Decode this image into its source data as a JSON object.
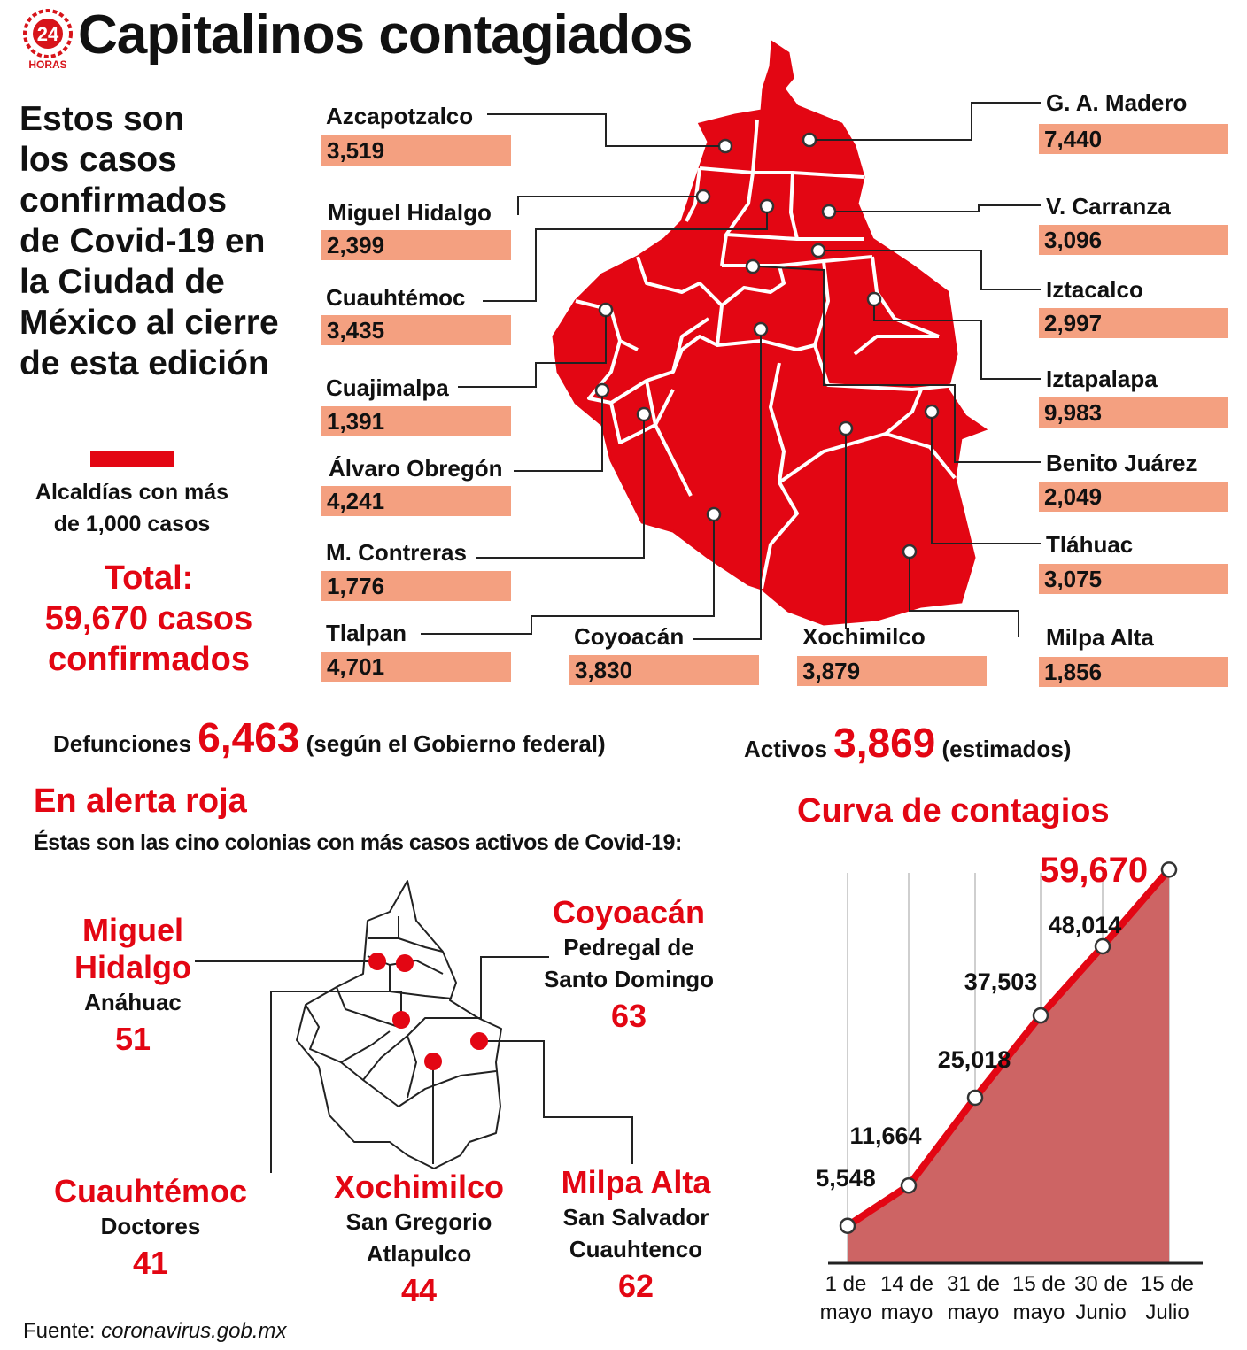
{
  "header": {
    "title": "Capitalinos contagiados",
    "logo_text": "HORAS",
    "logo_number": "24"
  },
  "intro": {
    "lines": [
      "Estos son",
      "los casos",
      "confirmados",
      "de Covid-19 en",
      "la Ciudad de",
      "México al cierre",
      "de esta edición"
    ]
  },
  "legend": {
    "color": "#e30613",
    "label_line1": "Alcaldías con más",
    "label_line2": "de 1,000 casos"
  },
  "total": {
    "line1": "Total:",
    "line2": "59,670 casos",
    "line3": "confirmados"
  },
  "alcaldias": [
    {
      "name": "Azcapotzalco",
      "cases": "3,519"
    },
    {
      "name": "Miguel Hidalgo",
      "cases": "2,399"
    },
    {
      "name": "Cuauhtémoc",
      "cases": "3,435"
    },
    {
      "name": "Cuajimalpa",
      "cases": "1,391"
    },
    {
      "name": "Álvaro Obregón",
      "cases": "4,241"
    },
    {
      "name": "M. Contreras",
      "cases": "1,776"
    },
    {
      "name": "Tlalpan",
      "cases": "4,701"
    },
    {
      "name": "Coyoacán",
      "cases": "3,830"
    },
    {
      "name": "Xochimilco",
      "cases": "3,879"
    },
    {
      "name": "G. A. Madero",
      "cases": "7,440"
    },
    {
      "name": "V. Carranza",
      "cases": "3,096"
    },
    {
      "name": "Iztacalco",
      "cases": "2,997"
    },
    {
      "name": "Iztapalapa",
      "cases": "9,983"
    },
    {
      "name": "Benito Juárez",
      "cases": "2,049"
    },
    {
      "name": "Tláhuac",
      "cases": "3,075"
    },
    {
      "name": "Milpa Alta",
      "cases": "1,856"
    }
  ],
  "stats": {
    "deaths_label": "Defunciones",
    "deaths_value": "6,463",
    "deaths_note": "(según el Gobierno federal)",
    "active_label": "Activos",
    "active_value": "3,869",
    "active_note": "(estimados)"
  },
  "alert": {
    "title": "En alerta roja",
    "subtitle": "Éstas son las cino colonias con más casos activos de Covid-19:",
    "colonias": [
      {
        "alcaldia_line1": "Miguel",
        "alcaldia_line2": "Hidalgo",
        "colonia_line1": "Anáhuac",
        "colonia_line2": "",
        "cases": "51"
      },
      {
        "alcaldia_line1": "Coyoacán",
        "alcaldia_line2": "",
        "colonia_line1": "Pedregal de",
        "colonia_line2": "Santo Domingo",
        "cases": "63"
      },
      {
        "alcaldia_line1": "Cuauhtémoc",
        "alcaldia_line2": "",
        "colonia_line1": "Doctores",
        "colonia_line2": "",
        "cases": "41"
      },
      {
        "alcaldia_line1": "Xochimilco",
        "alcaldia_line2": "",
        "colonia_line1": "San Gregorio",
        "colonia_line2": "Atlapulco",
        "cases": "44"
      },
      {
        "alcaldia_line1": "Milpa Alta",
        "alcaldia_line2": "",
        "colonia_line1": "San Salvador",
        "colonia_line2": "Cuauhtenco",
        "cases": "62"
      }
    ]
  },
  "curve": {
    "title": "Curva de contagios"
  },
  "chart_data": {
    "type": "area",
    "title": "Curva de contagios",
    "categories": [
      [
        "1 de",
        "mayo"
      ],
      [
        "14 de",
        "mayo"
      ],
      [
        "31 de",
        "mayo"
      ],
      [
        "15 de",
        "mayo"
      ],
      [
        "30 de",
        "Junio"
      ],
      [
        "15 de",
        "Julio"
      ]
    ],
    "values": [
      5548,
      11664,
      25018,
      37503,
      48014,
      59670
    ],
    "value_labels": [
      "5,548",
      "11,664",
      "25,018",
      "37,503",
      "48,014",
      "59,670"
    ],
    "line_color": "#e30613",
    "fill_color": "#cd6464",
    "ylim": [
      0,
      62000
    ],
    "grid": "vertical"
  },
  "source": {
    "label": "Fuente:",
    "site": "coronavirus.gob.mx"
  }
}
